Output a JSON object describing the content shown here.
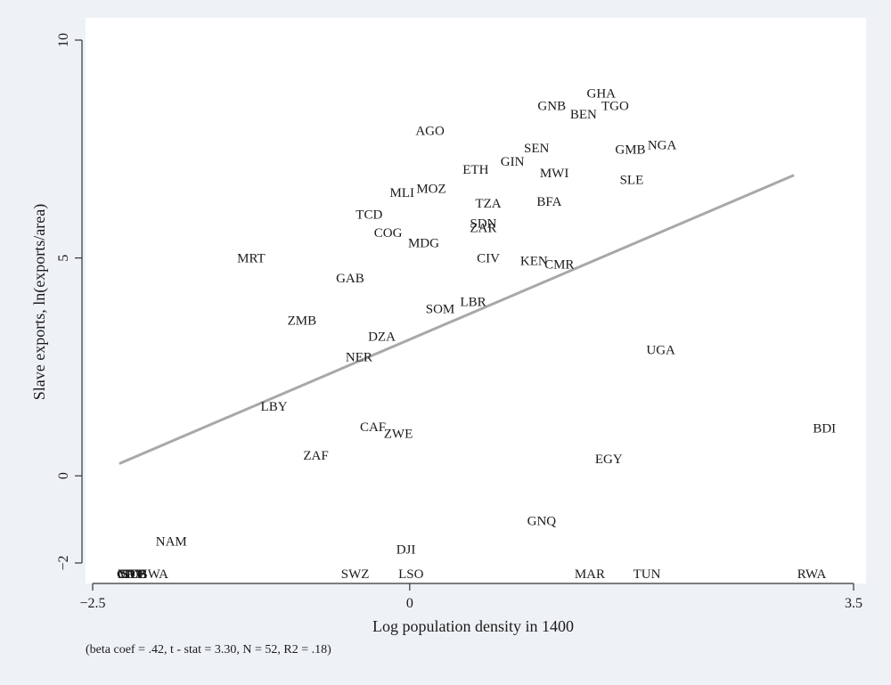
{
  "chart_data": {
    "type": "scatter",
    "xlabel": "Log population density in 1400",
    "ylabel": "Slave exports, ln(exports/area)",
    "note": "(beta coef = .42, t - stat = 3.30, N = 52, R2 = .18)",
    "xlim": [
      -2.5,
      3.5
    ],
    "ylim": [
      -2,
      10
    ],
    "x_ticks": [
      -2.5,
      0,
      3.5
    ],
    "x_tick_labels": [
      "−2.5",
      "0",
      "3.5"
    ],
    "y_ticks": [
      -2,
      0,
      5,
      10
    ],
    "y_tick_labels": [
      "−2",
      "0",
      "5",
      "10"
    ],
    "grid": false,
    "legend": "none",
    "fit_line": {
      "x": [
        -2.29,
        3.03
      ],
      "y": [
        0.28,
        6.9
      ],
      "color": "#a8a8a8"
    },
    "points": [
      {
        "label": "GHA",
        "x": 1.51,
        "y": 8.78
      },
      {
        "label": "GNB",
        "x": 1.12,
        "y": 8.5
      },
      {
        "label": "TGO",
        "x": 1.62,
        "y": 8.5
      },
      {
        "label": "BEN",
        "x": 1.37,
        "y": 8.3
      },
      {
        "label": "AGO",
        "x": 0.16,
        "y": 7.92
      },
      {
        "label": "NGA",
        "x": 1.99,
        "y": 7.6
      },
      {
        "label": "SEN",
        "x": 1.0,
        "y": 7.53
      },
      {
        "label": "GMB",
        "x": 1.74,
        "y": 7.5
      },
      {
        "label": "GIN",
        "x": 0.81,
        "y": 7.22
      },
      {
        "label": "ETH",
        "x": 0.52,
        "y": 7.04
      },
      {
        "label": "MWI",
        "x": 1.14,
        "y": 6.95
      },
      {
        "label": "SLE",
        "x": 1.75,
        "y": 6.8
      },
      {
        "label": "MOZ",
        "x": 0.17,
        "y": 6.6
      },
      {
        "label": "MLI",
        "x": -0.06,
        "y": 6.5
      },
      {
        "label": "BFA",
        "x": 1.1,
        "y": 6.3
      },
      {
        "label": "TZA",
        "x": 0.62,
        "y": 6.26
      },
      {
        "label": "TCD",
        "x": -0.32,
        "y": 6.0
      },
      {
        "label": "SDN",
        "x": 0.58,
        "y": 5.8
      },
      {
        "label": "ZAR",
        "x": 0.58,
        "y": 5.7
      },
      {
        "label": "COG",
        "x": -0.17,
        "y": 5.58
      },
      {
        "label": "MDG",
        "x": 0.11,
        "y": 5.35
      },
      {
        "label": "MRT",
        "x": -1.25,
        "y": 5.0
      },
      {
        "label": "CIV",
        "x": 0.62,
        "y": 5.0
      },
      {
        "label": "KEN",
        "x": 0.98,
        "y": 4.94
      },
      {
        "label": "CMR",
        "x": 1.18,
        "y": 4.86
      },
      {
        "label": "GAB",
        "x": -0.47,
        "y": 4.54
      },
      {
        "label": "LBR",
        "x": 0.5,
        "y": 4.0
      },
      {
        "label": "SOM",
        "x": 0.24,
        "y": 3.84
      },
      {
        "label": "ZMB",
        "x": -0.85,
        "y": 3.57
      },
      {
        "label": "DZA",
        "x": -0.22,
        "y": 3.2
      },
      {
        "label": "UGA",
        "x": 1.98,
        "y": 2.9
      },
      {
        "label": "NER",
        "x": -0.4,
        "y": 2.73
      },
      {
        "label": "LBY",
        "x": -1.07,
        "y": 1.6
      },
      {
        "label": "BDI",
        "x": 3.27,
        "y": 1.1
      },
      {
        "label": "CAF",
        "x": -0.29,
        "y": 1.13
      },
      {
        "label": "ZWE",
        "x": -0.09,
        "y": 0.97
      },
      {
        "label": "ZAF",
        "x": -0.74,
        "y": 0.47
      },
      {
        "label": "EGY",
        "x": 1.57,
        "y": 0.39
      },
      {
        "label": "GNQ",
        "x": 1.04,
        "y": -1.03
      },
      {
        "label": "NAM",
        "x": -1.88,
        "y": -1.5
      },
      {
        "label": "DJI",
        "x": -0.03,
        "y": -1.68
      },
      {
        "label": "BWA",
        "x": -2.02,
        "y": -2.25
      },
      {
        "label": "SWZ",
        "x": -0.43,
        "y": -2.25
      },
      {
        "label": "LSO",
        "x": 0.01,
        "y": -2.25
      },
      {
        "label": "MAR",
        "x": 1.42,
        "y": -2.25
      },
      {
        "label": "TUN",
        "x": 1.87,
        "y": -2.25
      },
      {
        "label": "RWA",
        "x": 3.17,
        "y": -2.25
      },
      {
        "label": "MUS",
        "x": -2.19,
        "y": -2.25
      },
      {
        "label": "CPV",
        "x": -2.2,
        "y": -2.25
      },
      {
        "label": "STP",
        "x": -2.18,
        "y": -2.25
      },
      {
        "label": "COM",
        "x": -2.19,
        "y": -2.25
      },
      {
        "label": "SYC",
        "x": -2.18,
        "y": -2.25
      }
    ]
  }
}
